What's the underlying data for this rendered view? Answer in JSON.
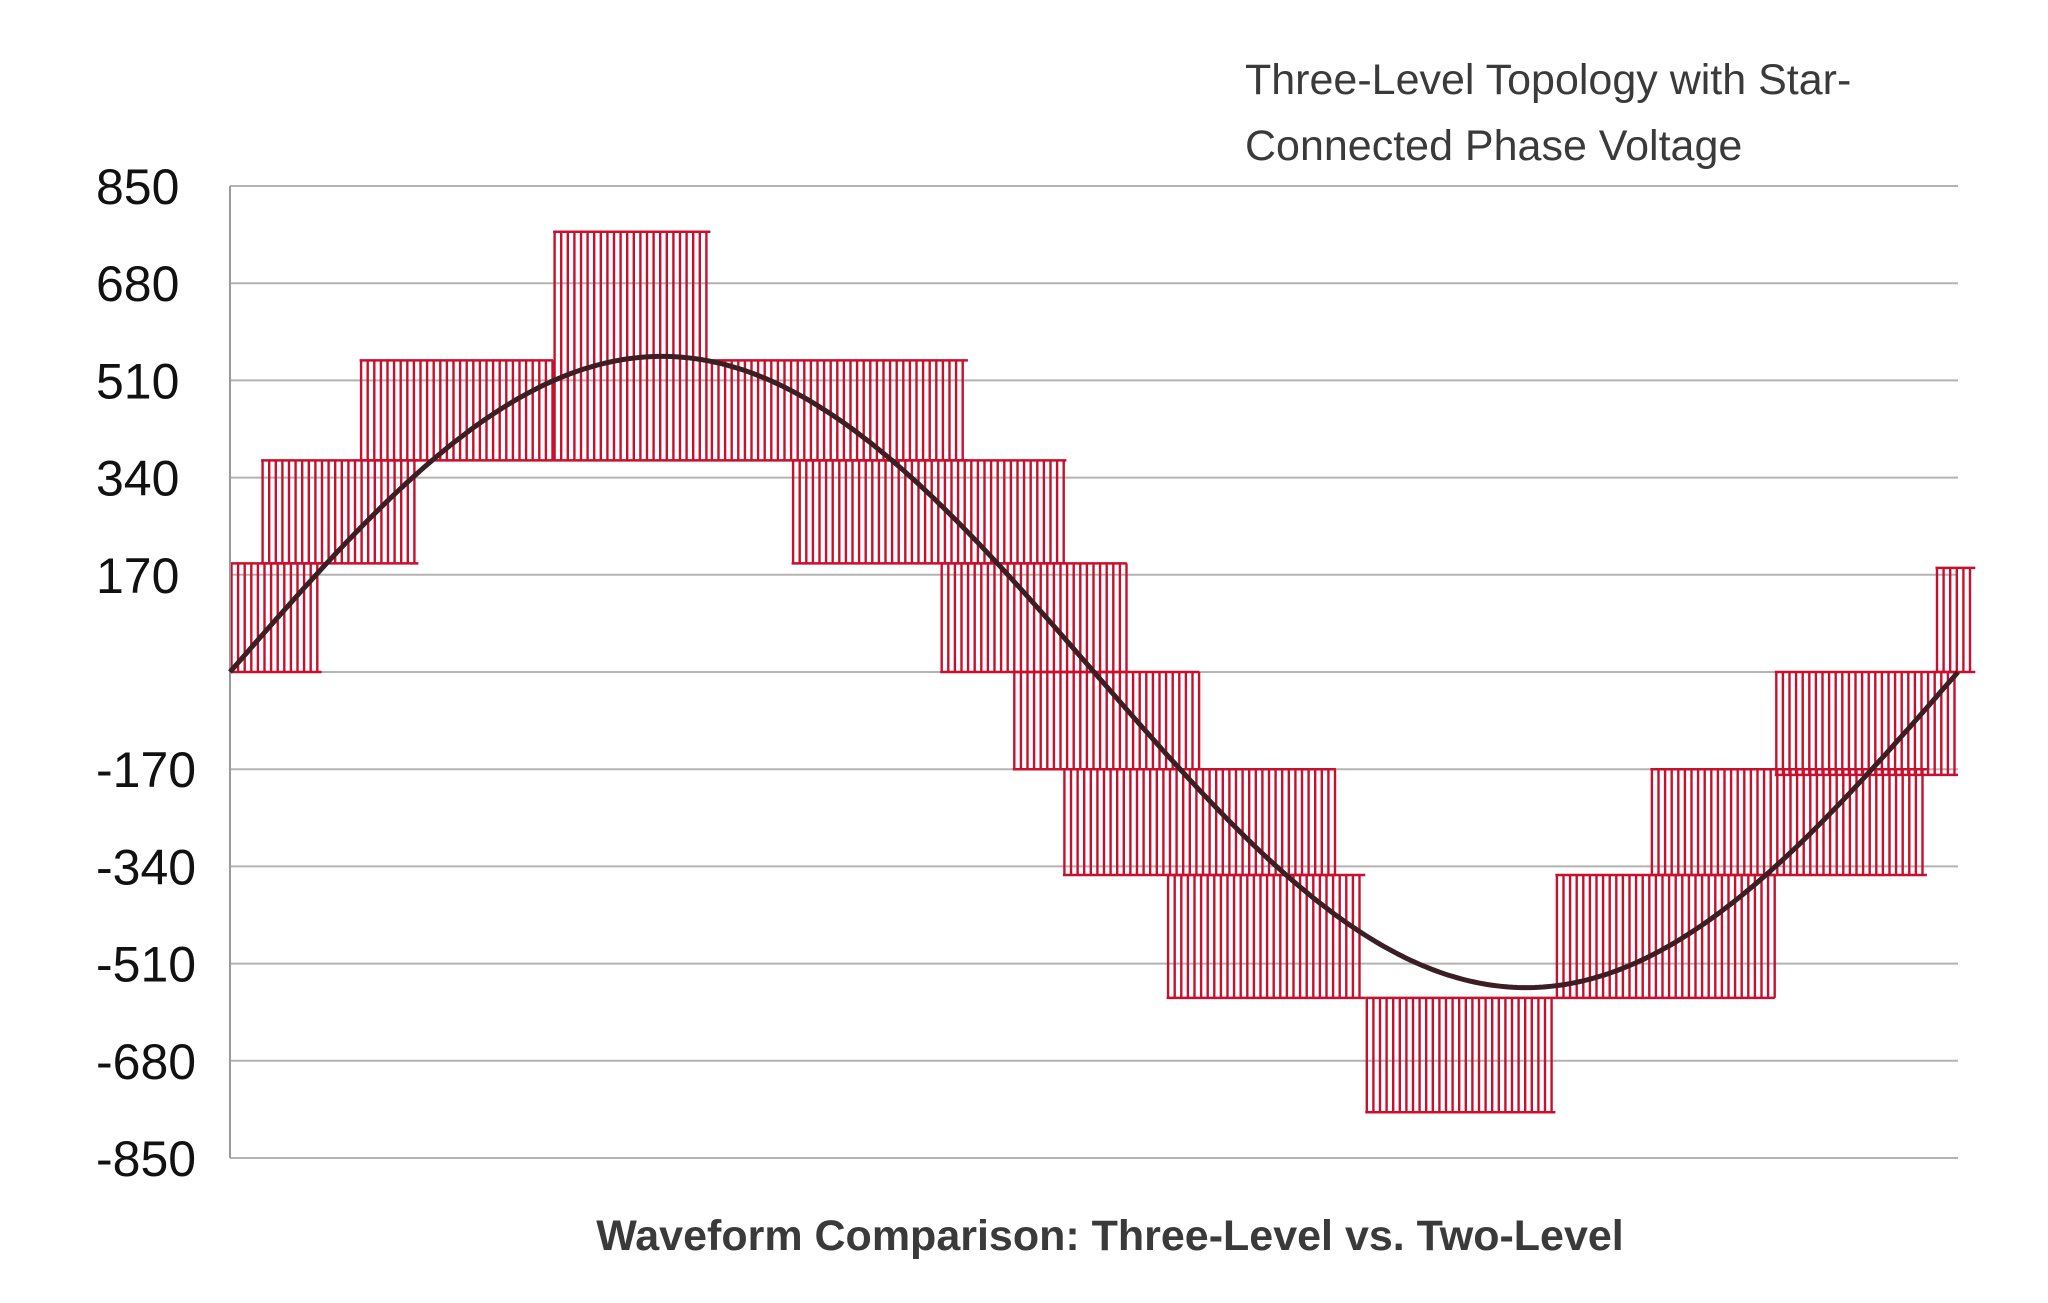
{
  "chart_data": {
    "type": "line",
    "title": "",
    "annotation_lines": [
      "Three-Level Topology with Star-",
      "Connected Phase Voltage"
    ],
    "xlabel": "Waveform Comparison: Three-Level vs. Two-Level",
    "ylabel": "",
    "ylim": [
      -850,
      850
    ],
    "yticks": [
      850,
      680,
      510,
      340,
      170,
      -170,
      -340,
      -510,
      -680,
      -850
    ],
    "xlim": [
      0,
      1
    ],
    "grid": "horizontal",
    "legend": "none",
    "series": [
      {
        "kind": "pwm_blocks",
        "color": "#c8102e",
        "blocks": [
          {
            "x0": 0.0,
            "x1": 0.053,
            "y0": 0,
            "y1": 190
          },
          {
            "x0": 0.018,
            "x1": 0.109,
            "y0": 190,
            "y1": 370
          },
          {
            "x0": 0.075,
            "x1": 0.187,
            "y0": 370,
            "y1": 545
          },
          {
            "x0": 0.187,
            "x1": 0.278,
            "y0": 370,
            "y1": 770
          },
          {
            "x0": 0.278,
            "x1": 0.427,
            "y0": 370,
            "y1": 545
          },
          {
            "x0": 0.325,
            "x1": 0.484,
            "y0": 190,
            "y1": 370
          },
          {
            "x0": 0.411,
            "x1": 0.519,
            "y0": 0,
            "y1": 190
          },
          {
            "x0": 0.453,
            "x1": 0.561,
            "y0": -170,
            "y1": 0
          },
          {
            "x0": 0.482,
            "x1": 0.64,
            "y0": -355,
            "y1": -170
          },
          {
            "x0": 0.542,
            "x1": 0.657,
            "y0": -570,
            "y1": -355
          },
          {
            "x0": 0.657,
            "x1": 0.767,
            "y0": -770,
            "y1": -570
          },
          {
            "x0": 0.767,
            "x1": 0.894,
            "y0": -570,
            "y1": -355
          },
          {
            "x0": 0.822,
            "x1": 0.982,
            "y0": -355,
            "y1": -170
          },
          {
            "x0": 0.894,
            "x1": 1.0,
            "y0": -180,
            "y1": 0
          },
          {
            "x0": 0.987,
            "x1": 1.01,
            "y0": 0,
            "y1": 182
          }
        ]
      },
      {
        "kind": "sine",
        "color": "#3b1f24",
        "amplitude": 552,
        "periods": 1
      }
    ]
  }
}
